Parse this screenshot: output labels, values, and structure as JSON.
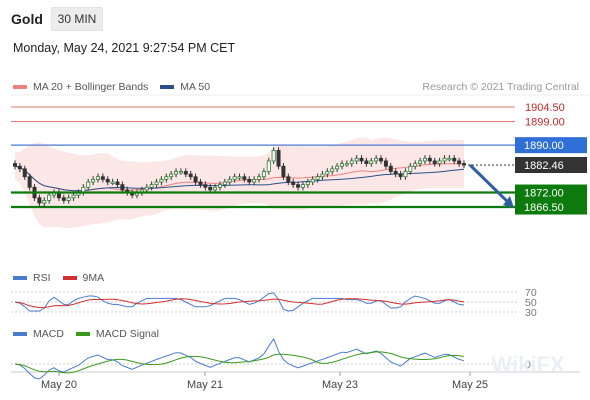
{
  "header": {
    "symbol": "Gold",
    "timeframe": "30 MIN"
  },
  "datetime": "Monday, May 24, 2021 9:27:54 PM CET",
  "legend": {
    "ma20": {
      "label": "MA 20 + Bollinger Bands",
      "color": "#f08080"
    },
    "ma50": {
      "label": "MA 50",
      "color": "#2a4f8a"
    }
  },
  "credit": "Research © 2021 Trading Central",
  "rsi_legend": {
    "rsi": "RSI",
    "ma9": "9MA"
  },
  "macd_legend": {
    "macd": "MACD",
    "signal": "MACD Signal"
  },
  "watermark": "WikiFX",
  "chart_data": {
    "type": "candlestick",
    "price_axis": [
      1860,
      1910
    ],
    "resistance_levels": [
      {
        "label": "1904.50",
        "value": 1904.5,
        "color": "#e57373"
      },
      {
        "label": "1899.00",
        "value": 1899.0,
        "color": "#e57373"
      },
      {
        "label": "1890.00",
        "value": 1890.0,
        "color": "#4a7bd1"
      }
    ],
    "current_price": {
      "label": "1882.46",
      "value": 1882.46
    },
    "support_levels": [
      {
        "label": "1872.00",
        "value": 1872.0,
        "color": "#0c7a0c"
      },
      {
        "label": "1866.50",
        "value": 1866.5,
        "color": "#0c7a0c"
      }
    ],
    "x_ticks": [
      "May 20",
      "May 21",
      "May 23",
      "May 25"
    ],
    "close": [
      1882,
      1881,
      1878,
      1874,
      1870,
      1868,
      1869,
      1871,
      1872,
      1870,
      1869,
      1870,
      1871,
      1872,
      1874,
      1876,
      1877,
      1878,
      1877,
      1876,
      1876,
      1875,
      1873,
      1872,
      1871,
      1872,
      1873,
      1874,
      1875,
      1876,
      1877,
      1878,
      1879,
      1880,
      1880,
      1879,
      1878,
      1876,
      1875,
      1874,
      1873,
      1874,
      1875,
      1876,
      1877,
      1878,
      1878,
      1877,
      1876,
      1877,
      1878,
      1880,
      1884,
      1888,
      1882,
      1878,
      1876,
      1875,
      1874,
      1875,
      1876,
      1877,
      1878,
      1879,
      1880,
      1881,
      1882,
      1883,
      1883,
      1884,
      1885,
      1884,
      1883,
      1884,
      1885,
      1884,
      1882,
      1880,
      1879,
      1878,
      1880,
      1882,
      1883,
      1884,
      1885,
      1884,
      1883,
      1884,
      1885,
      1885,
      1884,
      1883,
      1882.46
    ],
    "rsi": {
      "levels": [
        70,
        50,
        30
      ]
    },
    "macd": {
      "zero_label": "0"
    },
    "projection": {
      "from": 1882.46,
      "to": 1866.5
    }
  }
}
